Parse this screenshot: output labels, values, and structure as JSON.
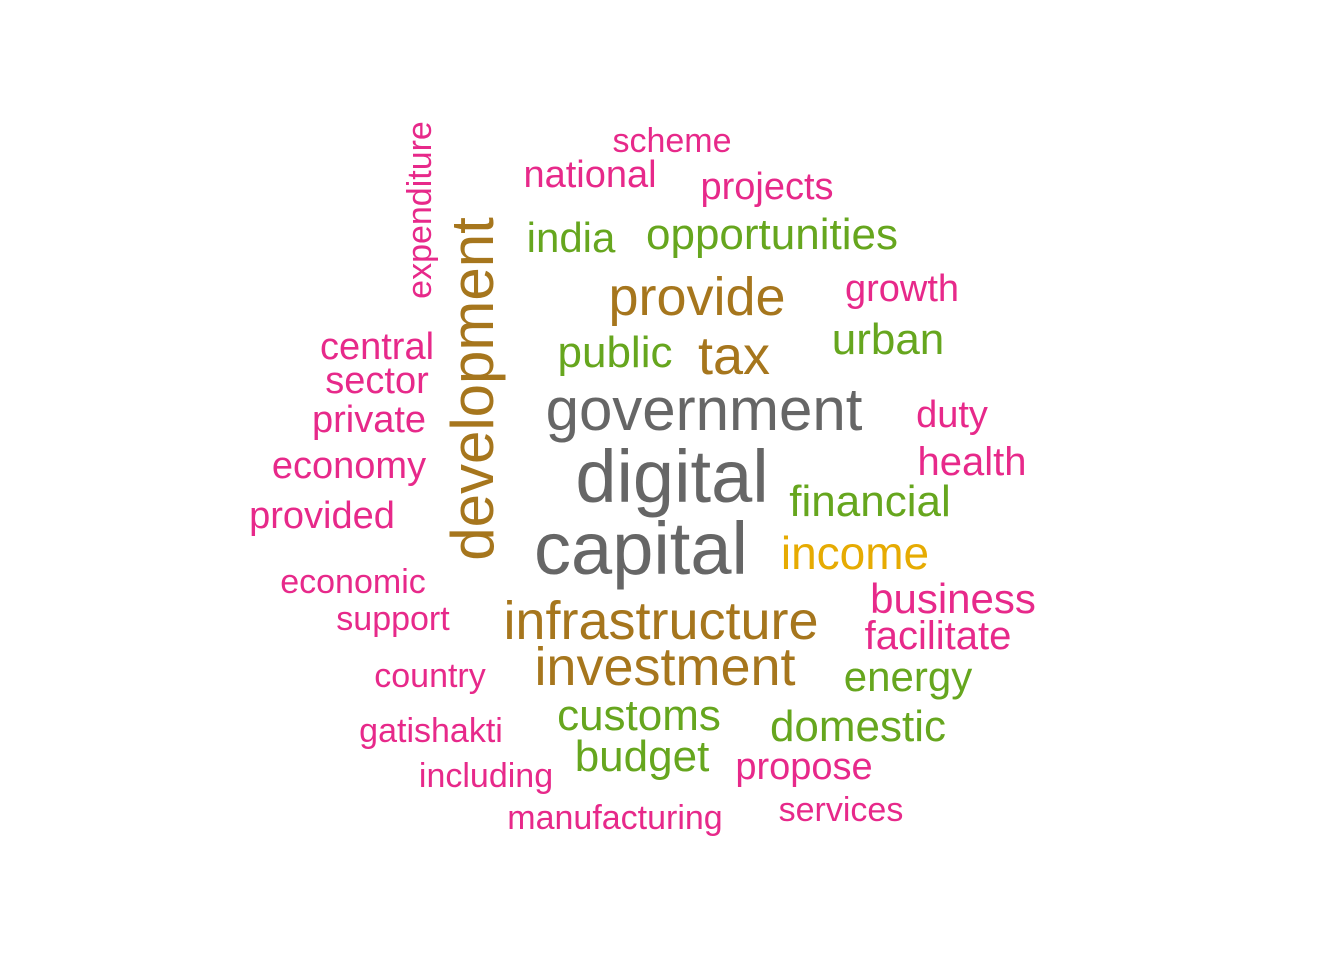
{
  "palette": {
    "gray": "#666666",
    "brown": "#a6761d",
    "gold": "#e6ab02",
    "green": "#66a61e",
    "pink": "#e7298a"
  },
  "words": {
    "digital": "digital",
    "capital": "capital",
    "government": "government",
    "development": "development",
    "infrastructure": "infrastructure",
    "investment": "investment",
    "provide": "provide",
    "tax": "tax",
    "income": "income",
    "opportunities": "opportunities",
    "customs": "customs",
    "financial": "financial",
    "public": "public",
    "urban": "urban",
    "budget": "budget",
    "domestic": "domestic",
    "energy": "energy",
    "india": "india",
    "business": "business",
    "facilitate": "facilitate",
    "health": "health",
    "economy": "economy",
    "national": "national",
    "projects": "projects",
    "growth": "growth",
    "central": "central",
    "sector": "sector",
    "duty": "duty",
    "propose": "propose",
    "private": "private",
    "provided": "provided",
    "economic": "economic",
    "expenditure": "expenditure",
    "support": "support",
    "scheme": "scheme",
    "country": "country",
    "gatishakti": "gatishakti",
    "including": "including",
    "manufacturing": "manufacturing",
    "services": "services"
  }
}
